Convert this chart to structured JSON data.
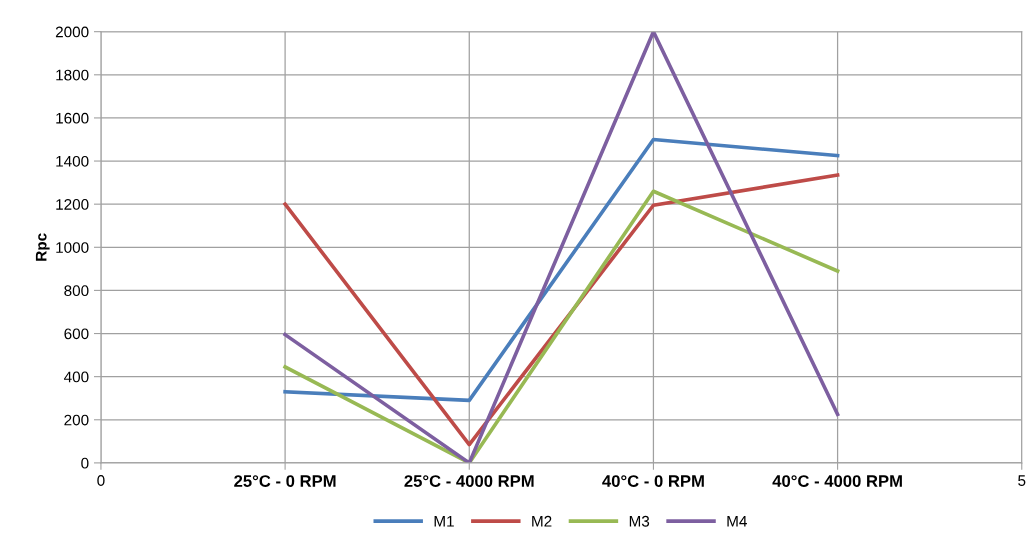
{
  "chart_data": {
    "type": "line",
    "ylabel": "Rpc",
    "x": [
      1,
      2,
      3,
      4
    ],
    "xlim": [
      0,
      5
    ],
    "xticks": [
      0,
      {
        "value": 1,
        "label": "25°C - 0 RPM"
      },
      {
        "value": 2,
        "label": "25°C - 4000 RPM"
      },
      {
        "value": 3,
        "label": "40°C - 0 RPM"
      },
      {
        "value": 4,
        "label": "40°C - 4000 RPM"
      },
      5
    ],
    "ylim": [
      0,
      2000
    ],
    "yticks": [
      0,
      200,
      400,
      600,
      800,
      1000,
      1200,
      1400,
      1600,
      1800,
      2000
    ],
    "grid": true,
    "legend": "bottom",
    "marker": "none",
    "line_style": "solid",
    "series": [
      {
        "name": "M1",
        "color": "#4a7ebb",
        "values": [
          330,
          290,
          1500,
          1425
        ]
      },
      {
        "name": "M2",
        "color": "#be4b48",
        "values": [
          1200,
          85,
          1195,
          1335
        ]
      },
      {
        "name": "M3",
        "color": "#98b954",
        "values": [
          445,
          0,
          1260,
          890
        ]
      },
      {
        "name": "M4",
        "color": "#7d5fa0",
        "values": [
          595,
          0,
          2000,
          225
        ]
      }
    ]
  }
}
